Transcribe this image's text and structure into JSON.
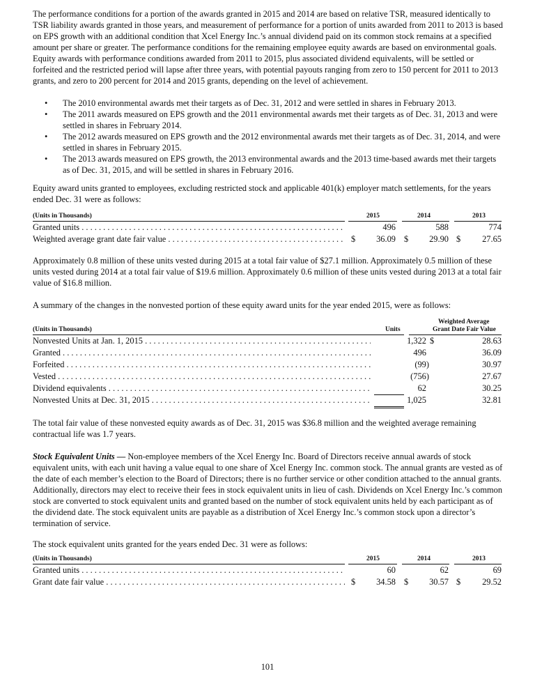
{
  "para1": "The performance conditions for a portion of the awards granted in 2015 and 2014 are based on relative TSR, measured identically to TSR liability awards granted in those years, and measurement of performance for a portion of units awarded from 2011 to 2013 is based on EPS growth with an additional condition that Xcel Energy Inc.’s annual dividend paid on its common stock remains at a specified amount per share or greater.  The performance conditions for the remaining employee equity awards are based on environmental goals.  Equity awards with performance conditions awarded from 2011 to 2015, plus associated dividend equivalents, will be settled or forfeited and the restricted period will lapse after three years, with potential payouts ranging from zero to 150 percent for 2011 to 2013 grants, and zero to 200 percent for 2014 and 2015 grants, depending on the level of achievement.",
  "bullets": [
    "The 2010 environmental awards met their targets as of Dec. 31, 2012 and were settled in shares in February 2013.",
    "The 2011 awards measured on EPS growth and the 2011 environmental awards met their targets as of Dec. 31, 2013 and were settled in shares in February 2014.",
    "The 2012 awards measured on EPS growth and the 2012 environmental awards met their targets as of Dec. 31, 2014, and were settled in shares in February 2015.",
    "The 2013 awards measured on EPS growth, the 2013 environmental awards and the 2013 time-based awards met their targets as of Dec. 31, 2015, and will be settled in shares in February 2016."
  ],
  "bullet_char": "•",
  "para2": "Equity award units granted to employees, excluding restricted stock and applicable 401(k) employer match settlements, for the years ended Dec. 31 were as follows:",
  "table1": {
    "header": "(Units in Thousands)",
    "years": [
      "2015",
      "2014",
      "2013"
    ],
    "rows": [
      {
        "label": "Granted units",
        "dollar": "",
        "values": [
          "496",
          "588",
          "774"
        ]
      },
      {
        "label": "Weighted average grant date fair value",
        "dollar": "$",
        "values": [
          "36.09",
          "29.90",
          "27.65"
        ]
      }
    ]
  },
  "para3": "Approximately 0.8 million of these units vested during 2015 at a total fair value of $27.1 million.  Approximately 0.5 million of these units vested during 2014 at a total fair value of $19.6 million.  Approximately 0.6 million of these units vested during 2013 at a total fair value of $16.8 million.",
  "para4": "A summary of the changes in the nonvested portion of these equity award units for the year ended 2015, were as follows:",
  "table2": {
    "header": "(Units in Thousands)",
    "col_units": "Units",
    "col_wa1": "Weighted Average",
    "col_wa2": "Grant Date Fair Value",
    "rows": [
      {
        "label": "Nonvested Units at Jan. 1, 2015",
        "units": "1,322",
        "dollar": "$",
        "value": "28.63"
      },
      {
        "label": "Granted",
        "units": "496",
        "dollar": "",
        "value": "36.09"
      },
      {
        "label": "Forfeited",
        "units": "(99)",
        "dollar": "",
        "value": "30.97"
      },
      {
        "label": "Vested",
        "units": "(756)",
        "dollar": "",
        "value": "27.67"
      },
      {
        "label": "Dividend equivalents",
        "units": "62",
        "dollar": "",
        "value": "30.25"
      },
      {
        "label": "Nonvested Units at Dec. 31, 2015",
        "units": "1,025",
        "dollar": "",
        "value": "32.81"
      }
    ]
  },
  "para5": "The total fair value of these nonvested equity awards as of Dec. 31, 2015 was $36.8 million and the weighted average remaining contractual life was 1.7 years.",
  "para6_title": "Stock Equivalent Units —",
  "para6": " Non-employee members of the Xcel Energy Inc. Board of Directors receive annual awards of stock equivalent units, with each unit having a value equal to one share of Xcel Energy Inc. common stock.  The annual grants are vested as of the date of each member’s election to the Board of Directors; there is no further service or other condition attached to the annual grants.  Additionally, directors may elect to receive their fees in stock equivalent units in lieu of cash.  Dividends on Xcel Energy Inc.’s common stock are converted to stock equivalent units and granted based on the number of stock equivalent units held by each participant as of the dividend date.  The stock equivalent units are payable as a distribution of Xcel Energy Inc.’s common stock upon a director’s termination of service.",
  "para7": "The stock equivalent units granted for the years ended Dec. 31 were as follows:",
  "table3": {
    "header": "(Units in Thousands)",
    "years": [
      "2015",
      "2014",
      "2013"
    ],
    "rows": [
      {
        "label": "Granted units",
        "dollar": "",
        "values": [
          "60",
          "62",
          "69"
        ]
      },
      {
        "label": "Grant date fair value",
        "dollar": "$",
        "values": [
          "34.58",
          "30.57",
          "29.52"
        ]
      }
    ]
  },
  "page_number": "101"
}
